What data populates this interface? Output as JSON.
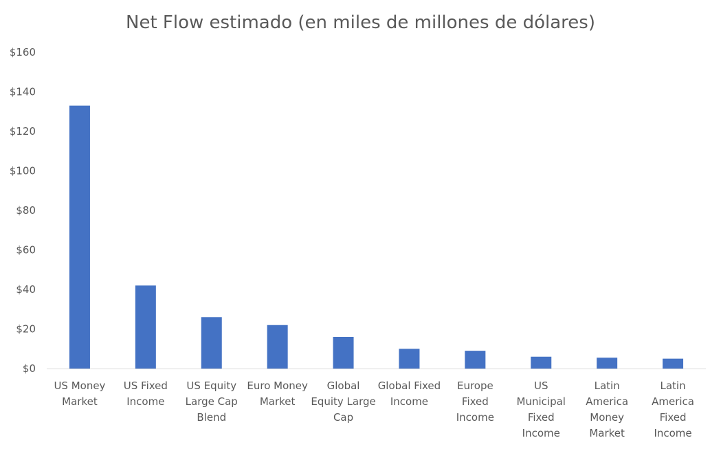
{
  "chart_data": {
    "type": "bar",
    "title": "Net Flow estimado (en miles de millones de dólares)",
    "xlabel": "",
    "ylabel": "",
    "categories": [
      "US Money Market",
      "US Fixed Income",
      "US Equity Large Cap Blend",
      "Euro Money Market",
      "Global Equity Large Cap",
      "Global Fixed Income",
      "Europe Fixed Income",
      "US Municipal Fixed Income",
      "Latin America Money Market",
      "Latin America Fixed Income"
    ],
    "category_lines": [
      [
        "US Money",
        "Market"
      ],
      [
        "US Fixed",
        "Income"
      ],
      [
        "US Equity",
        "Large Cap",
        "Blend"
      ],
      [
        "Euro Money",
        "Market"
      ],
      [
        "Global",
        "Equity Large",
        "Cap"
      ],
      [
        "Global Fixed",
        "Income"
      ],
      [
        "Europe",
        "Fixed",
        "Income"
      ],
      [
        "US",
        "Municipal",
        "Fixed",
        "Income"
      ],
      [
        "Latin",
        "America",
        "Money",
        "Market"
      ],
      [
        "Latin",
        "America",
        "Fixed",
        "Income"
      ]
    ],
    "values": [
      133,
      42,
      26,
      22,
      16,
      10,
      9,
      6,
      5.5,
      5
    ],
    "ylim": [
      0,
      160
    ],
    "yticks": [
      0,
      20,
      40,
      60,
      80,
      100,
      120,
      140,
      160
    ],
    "ytick_labels": [
      "$0",
      "$20",
      "$40",
      "$60",
      "$80",
      "$100",
      "$120",
      "$140",
      "$160"
    ],
    "bar_color": "#4472C4",
    "grid": false,
    "legend": "none"
  }
}
